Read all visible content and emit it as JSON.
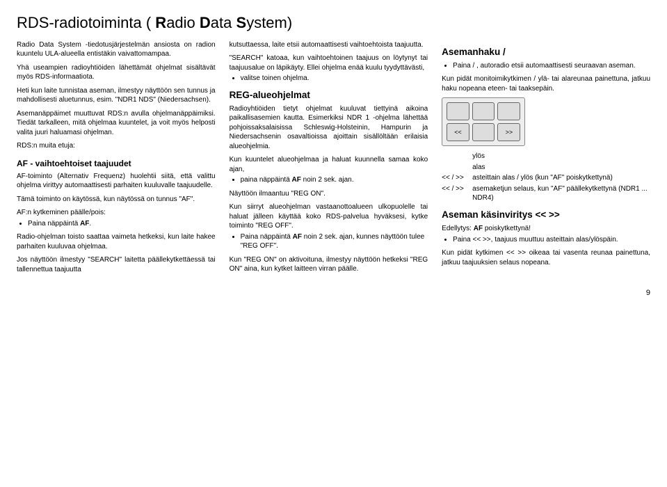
{
  "title_parts": [
    "RDS-radiotoiminta (",
    "R",
    "adio ",
    "D",
    "ata ",
    "S",
    "ystem)"
  ],
  "col1": {
    "p1": "Radio Data System -tiedotusjärjestelmän ansiosta on radion kuuntelu ULA-alueella entistäkin vaivattomampaa.",
    "p2": "Yhä useampien radioyhtiöiden lähettämät ohjelmat sisältävät myös RDS-informaatiota.",
    "p3": "Heti kun laite tunnistaa aseman, ilmestyy näyttöön sen tunnus ja mahdollisesti aluetunnus, esim. \"NDR1 NDS\" (Niedersachsen).",
    "p4": "Asemanäppäimet muuttuvat RDS:n avulla ohjelmanäppäimiksi. Tiedät tarkalleen, mitä ohjelmaa kuuntelet, ja voit myös helposti valita juuri haluamasi ohjelman.",
    "p5": "RDS:n muita etuja:",
    "h1": "AF - vaihtoehtoiset taajuudet",
    "p6": "AF-toiminto (Alternativ Frequenz) huolehtii siitä, että valittu ohjelma virittyy automaattisesti parhaiten kuuluvalle taajuudelle.",
    "p7": "Tämä toiminto on käytössä, kun näytössä on tunnus \"AF\".",
    "p8": "AF:n kytkeminen päälle/pois:",
    "li1": [
      "Paina näppäintä ",
      "AF",
      "."
    ],
    "p9": "Radio-ohjelman toisto saattaa vaimeta hetkeksi, kun laite hakee parhaiten kuuluvaa ohjelmaa.",
    "p10": "Jos näyttöön ilmestyy \"SEARCH\" laitetta päällekytkettäessä tai tallennettua taajuutta"
  },
  "col2": {
    "p1": "kutsuttaessa, laite etsii automaattisesti vaihtoehtoista taajuutta.",
    "p2": "\"SEARCH\" katoaa, kun vaihtoehtoinen taajuus on löytynyt tai taajuusalue on läpikäyty. Ellei ohjelma enää kuulu tyydyttävästi,",
    "li1": "valitse toinen ohjelma.",
    "h1": "REG-alueohjelmat",
    "p3": "Radioyhtiöiden tietyt ohjelmat kuuluvat tiettyinä aikoina paikallisasemien kautta. Esimerkiksi NDR 1 -ohjelma lähettää pohjoissaksalaisissa Schleswig-Holsteinin, Hampurin ja Niedersachsenin osavaltioissa ajoittain sisällöltään erilaisia alueohjelmia.",
    "p4": "Kun kuuntelet alueohjelmaa ja haluat kuunnella samaa koko ajan,",
    "li2": [
      "paina näppäintä ",
      "AF",
      " noin 2 sek. ajan."
    ],
    "p5": "Näyttöön ilmaantuu \"REG ON\".",
    "p6": "Kun siirryt alueohjelman vastaanottoalueen ulkopuolelle tai haluat jälleen käyttää koko RDS-palvelua hyväksesi, kytke toiminto \"REG OFF\".",
    "li3": [
      "Paina näppäintä ",
      "AF",
      " noin 2 sek. ajan, kunnes näyttöön tulee \"REG OFF\"."
    ],
    "p7": "Kun \"REG ON\" on aktivoituna, ilmestyy näyttöön hetkeksi \"REG ON\" aina, kun kytket laitteen virran päälle."
  },
  "col3": {
    "h1": "Asemanhaku  / ",
    "li1": "Paina  / , autoradio etsii automaattisesti seuraavan aseman.",
    "p1": "Kun pidät monitoimikytkimen  /  ylä- tai alareunaa painettuna, jatkuu haku nopeana eteen- tai taaksepäin.",
    "legend": [
      {
        "sym": "",
        "txt": "ylös"
      },
      {
        "sym": "",
        "txt": "alas"
      },
      {
        "sym": "<< / >>",
        "txt": "asteittain alas / ylös (kun \"AF\" poiskytkettynä)"
      },
      {
        "sym": "<< / >>",
        "txt": "asemaketjun selaus, kun \"AF\" päällekytkettynä (NDR1 ... NDR4)"
      }
    ],
    "h2": "Aseman käsinviritys << >>",
    "p2": [
      "Edellytys: ",
      "AF",
      " poiskytkettynä!"
    ],
    "li2": "Paina << >>, taajuus muuttuu asteittain alas/ylöspäin.",
    "p3": "Kun pidät kytkimen << >> oikeaa tai vasenta reunaa painettuna, jatkuu taajuuksien selaus nopeana.",
    "dbtn": [
      "",
      "",
      "",
      "<<",
      "",
      ">>"
    ]
  },
  "pagenum": "9"
}
